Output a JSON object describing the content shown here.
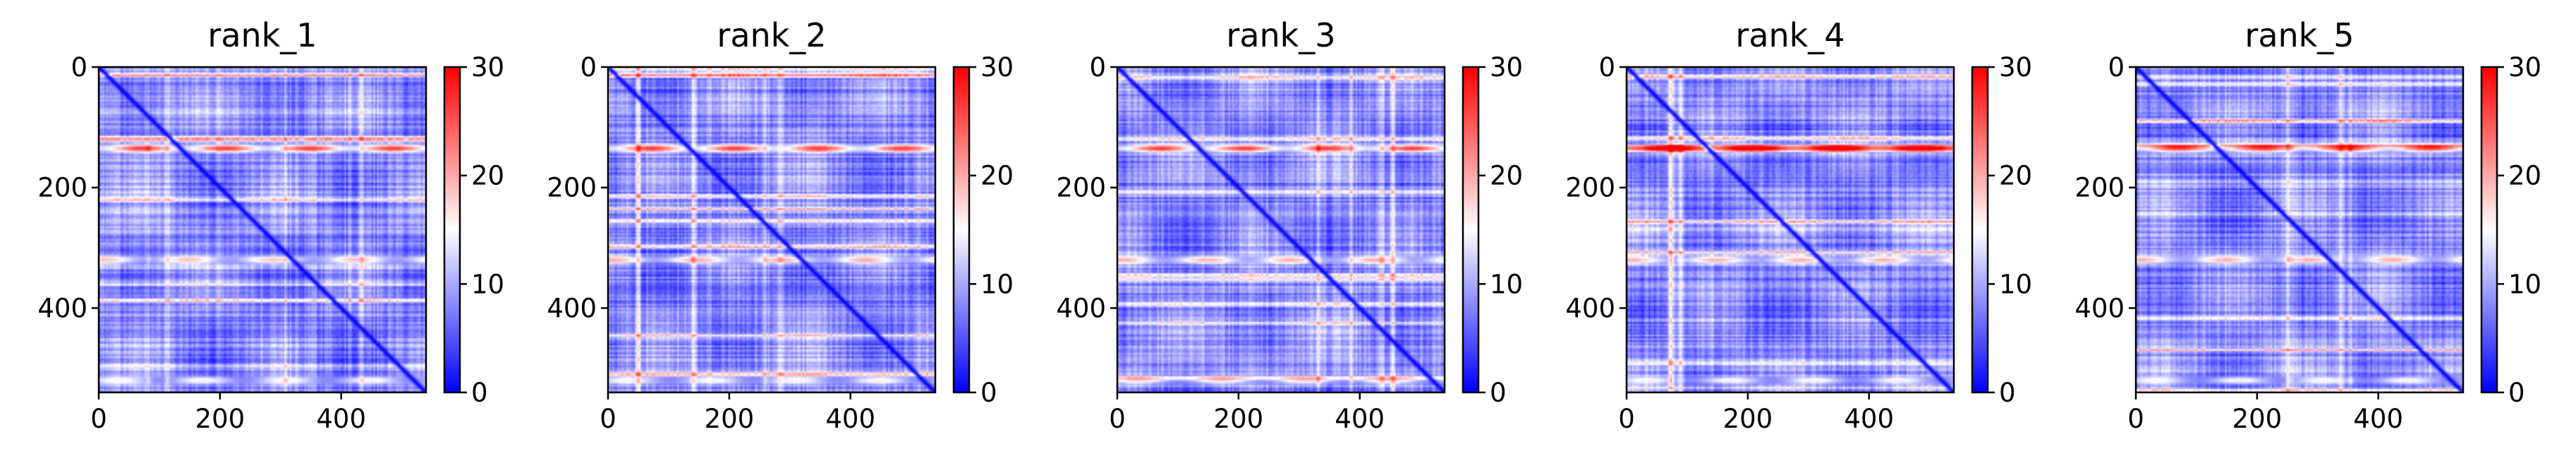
{
  "chart_data": [
    {
      "type": "heatmap",
      "title": "rank_1",
      "xlim": [
        0,
        540
      ],
      "ylim": [
        540,
        0
      ],
      "x_ticks": [
        0,
        200,
        400
      ],
      "y_ticks": [
        0,
        200,
        400
      ],
      "x_tick_labels": [
        "0",
        "200",
        "400"
      ],
      "y_tick_labels": [
        "0",
        "200",
        "400"
      ],
      "colorbar": {
        "min": 0,
        "max": 30,
        "ticks": [
          0,
          10,
          20,
          30
        ],
        "tick_labels": [
          "0",
          "10",
          "20",
          "30"
        ],
        "colormap": "bwr"
      },
      "features": {
        "diagonal_value": 0,
        "background_value": 8,
        "bright_rows": [
          {
            "y": 135,
            "value": 27
          },
          {
            "y": 320,
            "value": 19
          },
          {
            "y": 520,
            "value": 16
          }
        ]
      }
    },
    {
      "type": "heatmap",
      "title": "rank_2",
      "xlim": [
        0,
        540
      ],
      "ylim": [
        540,
        0
      ],
      "x_ticks": [
        0,
        200,
        400
      ],
      "y_ticks": [
        0,
        200,
        400
      ],
      "x_tick_labels": [
        "0",
        "200",
        "400"
      ],
      "y_tick_labels": [
        "0",
        "200",
        "400"
      ],
      "colorbar": {
        "min": 0,
        "max": 30,
        "ticks": [
          0,
          10,
          20,
          30
        ],
        "tick_labels": [
          "0",
          "10",
          "20",
          "30"
        ],
        "colormap": "bwr"
      },
      "features": {
        "diagonal_value": 0,
        "background_value": 8,
        "bright_rows": [
          {
            "y": 135,
            "value": 27
          },
          {
            "y": 320,
            "value": 20
          },
          {
            "y": 520,
            "value": 16
          }
        ]
      }
    },
    {
      "type": "heatmap",
      "title": "rank_3",
      "xlim": [
        0,
        540
      ],
      "ylim": [
        540,
        0
      ],
      "x_ticks": [
        0,
        200,
        400
      ],
      "y_ticks": [
        0,
        200,
        400
      ],
      "x_tick_labels": [
        "0",
        "200",
        "400"
      ],
      "y_tick_labels": [
        "0",
        "200",
        "400"
      ],
      "colorbar": {
        "min": 0,
        "max": 30,
        "ticks": [
          0,
          10,
          20,
          30
        ],
        "tick_labels": [
          "0",
          "10",
          "20",
          "30"
        ],
        "colormap": "bwr"
      },
      "features": {
        "diagonal_value": 0,
        "background_value": 8,
        "bright_rows": [
          {
            "y": 135,
            "value": 27
          },
          {
            "y": 320,
            "value": 20
          },
          {
            "y": 520,
            "value": 17
          }
        ]
      }
    },
    {
      "type": "heatmap",
      "title": "rank_4",
      "xlim": [
        0,
        540
      ],
      "ylim": [
        540,
        0
      ],
      "x_ticks": [
        0,
        200,
        400
      ],
      "y_ticks": [
        0,
        200,
        400
      ],
      "x_tick_labels": [
        "0",
        "200",
        "400"
      ],
      "y_tick_labels": [
        "0",
        "200",
        "400"
      ],
      "colorbar": {
        "min": 0,
        "max": 30,
        "ticks": [
          0,
          10,
          20,
          30
        ],
        "tick_labels": [
          "0",
          "10",
          "20",
          "30"
        ],
        "colormap": "bwr"
      },
      "features": {
        "diagonal_value": 0,
        "background_value": 8,
        "bright_rows": [
          {
            "y": 135,
            "value": 27
          },
          {
            "y": 320,
            "value": 20
          },
          {
            "y": 520,
            "value": 16
          }
        ]
      }
    },
    {
      "type": "heatmap",
      "title": "rank_5",
      "xlim": [
        0,
        540
      ],
      "ylim": [
        540,
        0
      ],
      "x_ticks": [
        0,
        200,
        400
      ],
      "y_ticks": [
        0,
        200,
        400
      ],
      "x_tick_labels": [
        "0",
        "200",
        "400"
      ],
      "y_tick_labels": [
        "0",
        "200",
        "400"
      ],
      "colorbar": {
        "min": 0,
        "max": 30,
        "ticks": [
          0,
          10,
          20,
          30
        ],
        "tick_labels": [
          "0",
          "10",
          "20",
          "30"
        ],
        "colormap": "bwr"
      },
      "features": {
        "diagonal_value": 0,
        "background_value": 8,
        "bright_rows": [
          {
            "y": 135,
            "value": 26
          },
          {
            "y": 320,
            "value": 20
          },
          {
            "y": 520,
            "value": 16
          }
        ]
      }
    }
  ]
}
